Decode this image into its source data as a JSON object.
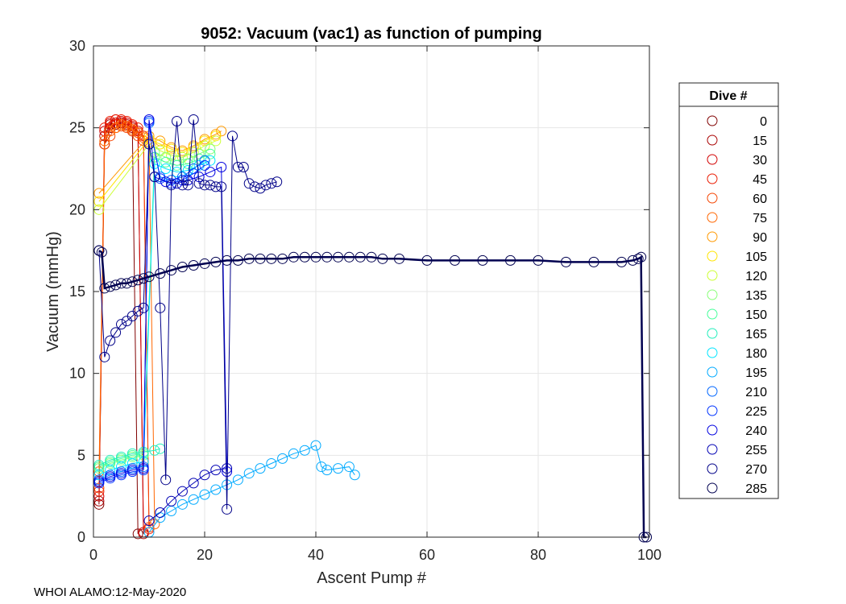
{
  "chart_data": {
    "type": "line",
    "title": "9052: Vacuum (vac1) as function of pumping",
    "xlabel": "Ascent Pump #",
    "ylabel": "Vacuum (mmHg)",
    "xlim": [
      0,
      100
    ],
    "ylim": [
      0,
      30
    ],
    "xticks": [
      0,
      20,
      40,
      60,
      80,
      100
    ],
    "yticks": [
      0,
      5,
      10,
      15,
      20,
      25,
      30
    ],
    "grid": true,
    "marker": "open-circle",
    "legend": {
      "title": "Dive #",
      "placement": "right",
      "entries": [
        {
          "label": "0",
          "color": "#800000"
        },
        {
          "label": "15",
          "color": "#a90000"
        },
        {
          "label": "30",
          "color": "#d20000"
        },
        {
          "label": "45",
          "color": "#ea1a00"
        },
        {
          "label": "60",
          "color": "#f54400"
        },
        {
          "label": "75",
          "color": "#ff6600"
        },
        {
          "label": "90",
          "color": "#ff9900"
        },
        {
          "label": "105",
          "color": "#ffe500"
        },
        {
          "label": "120",
          "color": "#ccff33"
        },
        {
          "label": "135",
          "color": "#88ff77"
        },
        {
          "label": "150",
          "color": "#44ff99"
        },
        {
          "label": "165",
          "color": "#22eebb"
        },
        {
          "label": "180",
          "color": "#00e5ff"
        },
        {
          "label": "195",
          "color": "#00aaff"
        },
        {
          "label": "210",
          "color": "#0066ff"
        },
        {
          "label": "225",
          "color": "#0033ff"
        },
        {
          "label": "240",
          "color": "#0000e0"
        },
        {
          "label": "255",
          "color": "#0000b4"
        },
        {
          "label": "270",
          "color": "#000088"
        },
        {
          "label": "285",
          "color": "#000050"
        }
      ]
    },
    "series": [
      {
        "name": "0",
        "color": "#800000",
        "x": [
          1,
          2,
          3,
          4,
          5,
          6,
          7,
          8
        ],
        "y": [
          2,
          24,
          25,
          25.2,
          25.3,
          25.1,
          24.8,
          0.2
        ]
      },
      {
        "name": "15",
        "color": "#a90000",
        "x": [
          1,
          2,
          3,
          4,
          5,
          6,
          7,
          8,
          9
        ],
        "y": [
          2.2,
          24.5,
          25.2,
          25.3,
          25.3,
          25.2,
          25,
          24.7,
          0.2
        ]
      },
      {
        "name": "30",
        "color": "#d20000",
        "x": [
          1,
          2,
          3,
          4,
          5,
          6,
          7,
          8,
          9
        ],
        "y": [
          2.5,
          24.8,
          25.3,
          25.5,
          25.4,
          25.3,
          25.1,
          24.8,
          0.3
        ]
      },
      {
        "name": "45",
        "color": "#ea1a00",
        "x": [
          1,
          2,
          3,
          4,
          5,
          6,
          7,
          8,
          9,
          10
        ],
        "y": [
          2.8,
          25,
          25.4,
          25.5,
          25.5,
          25.4,
          25.2,
          25,
          24.5,
          0.5
        ]
      },
      {
        "name": "60",
        "color": "#f54400",
        "x": [
          1,
          2,
          3,
          4,
          5,
          6,
          7,
          8,
          9,
          10
        ],
        "y": [
          3,
          24,
          24.5,
          25,
          25.1,
          25,
          24.8,
          24.5,
          24.2,
          0.6
        ]
      },
      {
        "name": "75",
        "color": "#ff6600",
        "x": [
          1,
          2,
          3,
          4,
          5,
          6,
          7,
          8,
          9,
          10,
          11
        ],
        "y": [
          4,
          24.2,
          24.8,
          25,
          25.2,
          25.1,
          24.9,
          24.7,
          24.4,
          24.1,
          0.8
        ]
      },
      {
        "name": "90",
        "color": "#ff9900",
        "x": [
          1,
          10,
          12,
          14,
          16,
          18,
          20,
          22,
          23
        ],
        "y": [
          21,
          24.5,
          24.2,
          23.8,
          23.6,
          23.9,
          24.3,
          24.6,
          24.8
        ]
      },
      {
        "name": "105",
        "color": "#ffe500",
        "x": [
          1,
          10,
          12,
          14,
          16,
          18,
          20,
          22
        ],
        "y": [
          20.5,
          24.3,
          24,
          23.7,
          23.5,
          23.8,
          24.2,
          24.5
        ]
      },
      {
        "name": "120",
        "color": "#ccff33",
        "x": [
          1,
          10,
          12,
          14,
          16,
          18,
          20,
          22
        ],
        "y": [
          20,
          24,
          23.6,
          23.3,
          23.2,
          23.5,
          23.9,
          24.2
        ]
      },
      {
        "name": "135",
        "color": "#88ff77",
        "x": [
          1,
          3,
          5,
          7,
          9,
          11,
          13,
          15,
          17,
          19,
          21
        ],
        "y": [
          4.2,
          4.5,
          4.7,
          4.9,
          5,
          23.5,
          23.2,
          23,
          23.1,
          23.4,
          23.7
        ]
      },
      {
        "name": "150",
        "color": "#44ff99",
        "x": [
          1,
          3,
          5,
          7,
          9,
          11,
          13,
          15,
          17,
          19,
          21
        ],
        "y": [
          4.3,
          4.6,
          4.8,
          5,
          5.1,
          23.2,
          22.9,
          22.7,
          22.8,
          23.1,
          23.4
        ]
      },
      {
        "name": "165",
        "color": "#22eebb",
        "x": [
          1,
          3,
          5,
          7,
          9,
          11,
          12
        ],
        "y": [
          4.4,
          4.7,
          4.9,
          5.1,
          5.2,
          5.3,
          5.4
        ]
      },
      {
        "name": "180",
        "color": "#00e5ff",
        "x": [
          1,
          3,
          5,
          7,
          9,
          11,
          13,
          15,
          17,
          19,
          21
        ],
        "y": [
          3.8,
          4.1,
          4.3,
          4.5,
          4.6,
          22.8,
          22.5,
          22.3,
          22.4,
          22.7,
          23
        ]
      },
      {
        "name": "195",
        "color": "#00aaff",
        "x": [
          10,
          12,
          14,
          16,
          18,
          20,
          22,
          24,
          26,
          28,
          30,
          32,
          34,
          36,
          38,
          40,
          41,
          42,
          44,
          46,
          47
        ],
        "y": [
          0.3,
          1.2,
          1.6,
          2,
          2.3,
          2.6,
          2.9,
          3.2,
          3.5,
          3.9,
          4.2,
          4.5,
          4.8,
          5.1,
          5.3,
          5.6,
          4.3,
          4.1,
          4.2,
          4.3,
          3.8
        ]
      },
      {
        "name": "210",
        "color": "#0066ff",
        "x": [
          1,
          3,
          5,
          7,
          9,
          10,
          12,
          14,
          16,
          18,
          20
        ],
        "y": [
          3.5,
          3.8,
          4,
          4.2,
          4.3,
          25.3,
          22,
          21.8,
          22,
          22.5,
          23
        ]
      },
      {
        "name": "225",
        "color": "#0033ff",
        "x": [
          1,
          3,
          5,
          7,
          9,
          10,
          12,
          14,
          16,
          18,
          20
        ],
        "y": [
          3.3,
          3.6,
          3.8,
          4,
          4.1,
          25.4,
          21.9,
          21.6,
          21.8,
          22.2,
          22.7
        ]
      },
      {
        "name": "240",
        "color": "#0000e0",
        "x": [
          1,
          3,
          5,
          7,
          9,
          10,
          11,
          13,
          15,
          17,
          19,
          21,
          23,
          24
        ],
        "y": [
          3.4,
          3.7,
          3.9,
          4.1,
          4.2,
          25.5,
          22,
          21.7,
          21.6,
          21.8,
          22,
          22.3,
          22.6,
          4
        ]
      },
      {
        "name": "255",
        "color": "#0000b4",
        "x": [
          10,
          12,
          14,
          16,
          18,
          20,
          22,
          24
        ],
        "y": [
          1,
          1.5,
          2.2,
          2.8,
          3.3,
          3.8,
          4.1,
          4.2
        ]
      },
      {
        "name": "270",
        "color": "#000088",
        "x": [
          1,
          2,
          3,
          4,
          5,
          6,
          7,
          8,
          9,
          10,
          11,
          12,
          13,
          14,
          15,
          16,
          17,
          18,
          19,
          20,
          21,
          22,
          23,
          24,
          25,
          26,
          27,
          28,
          29,
          30,
          31,
          32,
          33
        ],
        "y": [
          17.5,
          11,
          12,
          12.5,
          13,
          13.2,
          13.5,
          13.8,
          14,
          24,
          22,
          14,
          3.5,
          21.5,
          25.4,
          21.5,
          21.5,
          25.5,
          21.6,
          21.5,
          21.5,
          21.4,
          21.4,
          1.7,
          24.5,
          22.6,
          22.6,
          21.6,
          21.4,
          21.3,
          21.5,
          21.6,
          21.7
        ]
      },
      {
        "name": "285",
        "color": "#000050",
        "x": [
          1,
          1.5,
          2,
          3,
          4,
          5,
          6,
          7,
          8,
          9,
          10,
          12,
          14,
          16,
          18,
          20,
          22,
          24,
          26,
          28,
          30,
          32,
          34,
          36,
          38,
          40,
          42,
          44,
          46,
          48,
          50,
          52,
          55,
          60,
          65,
          70,
          75,
          80,
          85,
          90,
          95,
          97,
          98,
          98.5,
          99,
          99.5
        ],
        "y": [
          17.5,
          17.4,
          15.2,
          15.3,
          15.4,
          15.5,
          15.5,
          15.6,
          15.7,
          15.8,
          15.9,
          16.1,
          16.3,
          16.5,
          16.6,
          16.7,
          16.8,
          16.9,
          16.9,
          17,
          17,
          17,
          17,
          17.1,
          17.1,
          17.1,
          17.1,
          17.1,
          17.1,
          17.1,
          17.1,
          17,
          17,
          16.9,
          16.9,
          16.9,
          16.9,
          16.9,
          16.8,
          16.8,
          16.8,
          16.9,
          17,
          17.1,
          0,
          0
        ]
      }
    ]
  },
  "footer": {
    "text": "WHOI ALAMO:12-May-2020"
  }
}
